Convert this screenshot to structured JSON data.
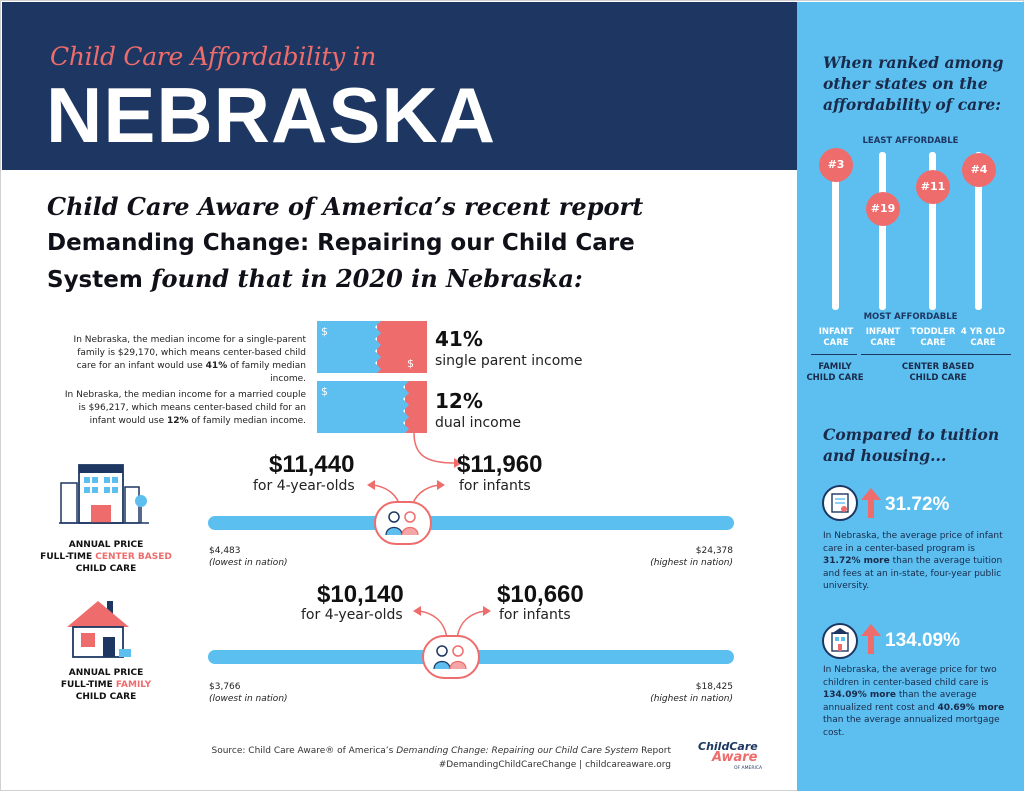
{
  "header": {
    "subtitle": "Child Care Affordability in",
    "state": "NEBRASKA"
  },
  "intro": {
    "line1": "Child Care Aware of America’s recent report",
    "line2": "Demanding Change: Repairing our Child Care",
    "line3a": "System",
    "line3b": " found that in 2020 in Nebraska:"
  },
  "income": {
    "single": {
      "description_a": "In Nebraska, the median income for a single-parent family is $29,170, which means center-based child care for an infant would use ",
      "description_pct": "41%",
      "description_b": " of family median income.",
      "percent": "41%",
      "label": "single parent income",
      "fraction": 0.41
    },
    "dual": {
      "description_a": "In Nebraska, the median income for a married couple is $96,217, which means center-based child for an infant would use ",
      "description_pct": "12%",
      "description_b": " of family median income.",
      "percent": "12%",
      "label": "dual income",
      "fraction": 0.12
    },
    "dollar_sign": "$"
  },
  "center": {
    "price_4yr": "$11,440",
    "label_4yr": "for 4-year-olds",
    "price_infant": "$11,960",
    "label_infant": "for infants",
    "low_value": "$4,483",
    "low_note": "(lowest in nation)",
    "high_value": "$24,378",
    "high_note": "(highest in nation)",
    "cat_line1": "ANNUAL PRICE",
    "cat_line2a": "FULL-TIME ",
    "cat_line2b": "CENTER BASED",
    "cat_line3": "CHILD CARE"
  },
  "family": {
    "price_4yr": "$10,140",
    "label_4yr": "for 4-year-olds",
    "price_infant": "$10,660",
    "label_infant": "for infants",
    "low_value": "$3,766",
    "low_note": "(lowest in nation)",
    "high_value": "$18,425",
    "high_note": "(highest in nation)",
    "cat_line1": "ANNUAL PRICE",
    "cat_line2a": "FULL-TIME ",
    "cat_line2b": "FAMILY",
    "cat_line3": "CHILD CARE"
  },
  "source": {
    "line1a": "Source: Child Care Aware® of America’s ",
    "line1b": "Demanding Change: Repairing our Child Care System",
    "line1c": " Report",
    "line2": "#DemandingChildCareChange | childcareaware.org"
  },
  "logo": {
    "line1": "ChildCare",
    "line2": "Aware",
    "line3": "OF AMERICA"
  },
  "sidebar": {
    "rank_title": "When ranked among other states on the affordability of care:",
    "least": "LEAST AFFORDABLE",
    "most": "MOST AFFORDABLE",
    "ranks": [
      {
        "rank": "#3",
        "col1": "INFANT",
        "col2": "CARE"
      },
      {
        "rank": "#19",
        "col1": "INFANT",
        "col2": "CARE"
      },
      {
        "rank": "#11",
        "col1": "TODDLER",
        "col2": "CARE"
      },
      {
        "rank": "#4",
        "col1": "4 YR OLD",
        "col2": "CARE"
      }
    ],
    "group_family_1": "FAMILY",
    "group_family_2": "CHILD CARE",
    "group_center_1": "CENTER BASED",
    "group_center_2": "CHILD CARE",
    "compare_title": "Compared to tuition and housing...",
    "stat1": "31.72%",
    "stat1_a": "In Nebraska, the average price of infant care in a center-based program is ",
    "stat1_b": "31.72% more",
    "stat1_c": " than the average tuition and fees at an in-state, four-year public university.",
    "stat2": "134.09%",
    "stat2_a": "In Nebraska, the average price for two children in center-based child care is ",
    "stat2_b": "134.09% more",
    "stat2_c": " than the average annualized rent cost and ",
    "stat2_d": "40.69% more",
    "stat2_e": " than the average annualized mortgage cost."
  },
  "colors": {
    "navy": "#1e3762",
    "coral": "#ef6c6c",
    "sky": "#5cbff0"
  }
}
